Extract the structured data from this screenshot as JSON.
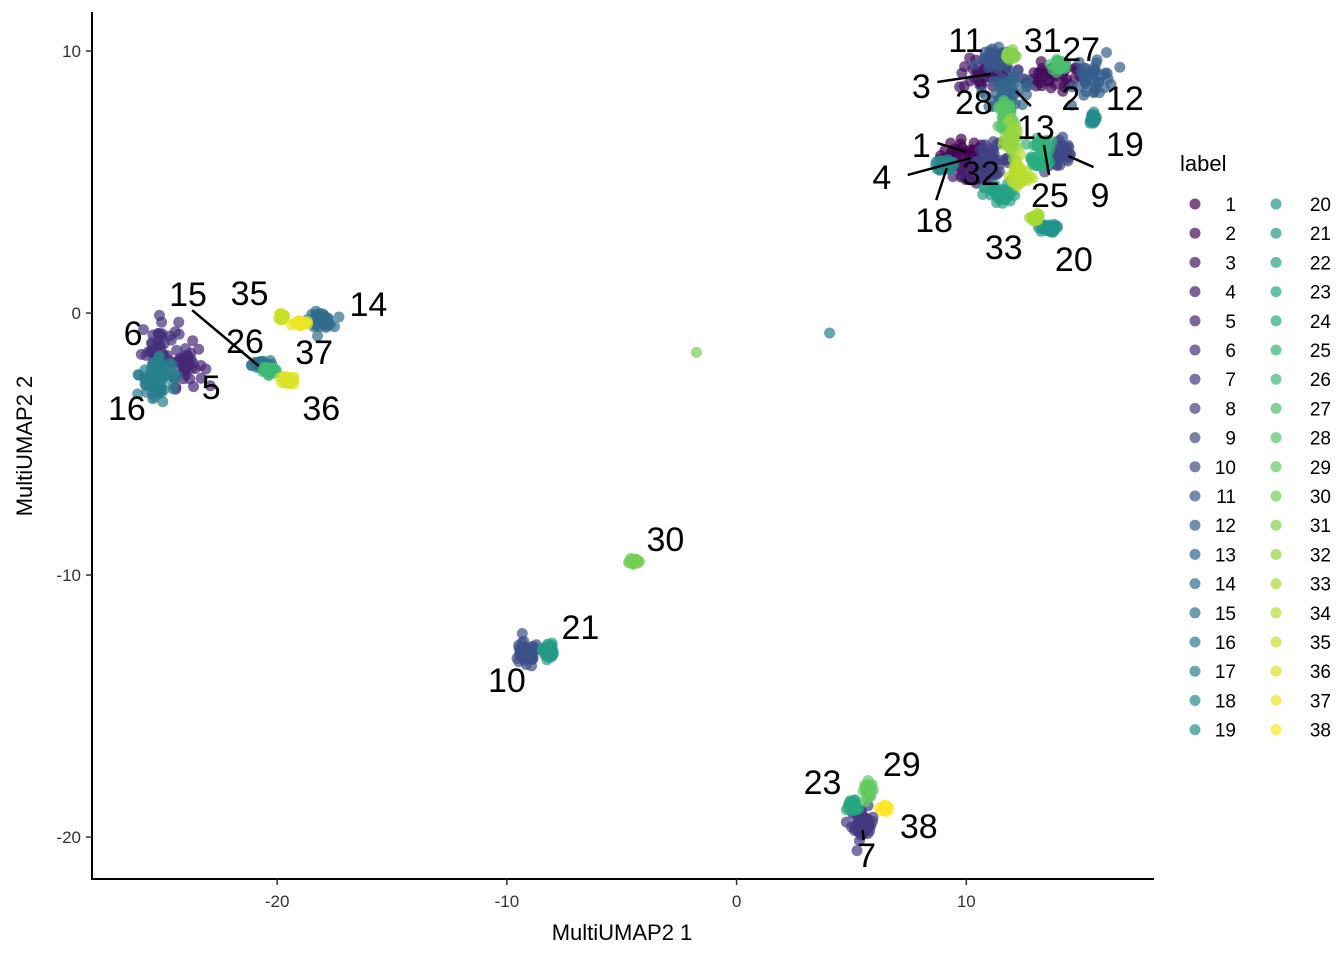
{
  "chart_data": {
    "type": "scatter",
    "xlabel": "MultiUMAP2 1",
    "ylabel": "MultiUMAP2 2",
    "xlim": [
      -28.06,
      18.17
    ],
    "ylim": [
      -21.6,
      11.49
    ],
    "xticks": [
      -20,
      -10,
      0,
      10
    ],
    "yticks": [
      -20,
      -10,
      0,
      10
    ],
    "grid": false,
    "legend": {
      "title": "label",
      "placement": "right",
      "columns": 2
    },
    "colorscale": [
      "#440154",
      "#472d7b",
      "#3b528b",
      "#2c728e",
      "#21918c",
      "#28ae80",
      "#5ec962",
      "#addc30",
      "#fde725"
    ],
    "point_opacity": 0.7,
    "clusters": [
      {
        "label": "1",
        "center": [
          9.98,
          6.03
        ],
        "sd": [
          0.55,
          0.3
        ]
      },
      {
        "label": "2",
        "center": [
          13.7,
          8.97
        ],
        "sd": [
          0.7,
          0.25
        ]
      },
      {
        "label": "3",
        "center": [
          10.85,
          9.08
        ],
        "sd": [
          0.6,
          0.3
        ]
      },
      {
        "label": "4",
        "center": [
          10.4,
          5.46
        ],
        "sd": [
          0.45,
          0.3
        ]
      },
      {
        "label": "5",
        "center": [
          -24.0,
          -1.98
        ],
        "sd": [
          0.4,
          0.4
        ]
      },
      {
        "label": "6",
        "center": [
          -25.1,
          -1.22
        ],
        "sd": [
          0.4,
          0.5
        ]
      },
      {
        "label": "7",
        "center": [
          5.5,
          -19.5
        ],
        "sd": [
          0.25,
          0.3
        ]
      },
      {
        "label": "8",
        "center": [
          11.07,
          5.84
        ],
        "sd": [
          0.4,
          0.3
        ]
      },
      {
        "label": "9",
        "center": [
          14.1,
          6.03
        ],
        "sd": [
          0.35,
          0.35
        ]
      },
      {
        "label": "10",
        "center": [
          -9.2,
          -13.05
        ],
        "sd": [
          0.3,
          0.25
        ]
      },
      {
        "label": "11",
        "center": [
          11.3,
          9.66
        ],
        "sd": [
          0.35,
          0.2
        ]
      },
      {
        "label": "12",
        "center": [
          15.6,
          9.08
        ],
        "sd": [
          0.45,
          0.45
        ]
      },
      {
        "label": "13",
        "center": [
          11.9,
          8.5
        ],
        "sd": [
          0.55,
          0.3
        ]
      },
      {
        "label": "14",
        "center": [
          -18.1,
          -0.27
        ],
        "sd": [
          0.25,
          0.15
        ]
      },
      {
        "label": "15",
        "center": [
          -20.7,
          -1.98
        ],
        "sd": [
          0.2,
          0.08
        ]
      },
      {
        "label": "16",
        "center": [
          -25.3,
          -2.75
        ],
        "sd": [
          0.45,
          0.35
        ]
      },
      {
        "label": "17",
        "center": [
          -25.1,
          -2.2
        ],
        "sd": [
          0.35,
          0.3
        ]
      },
      {
        "label": "18",
        "center": [
          9.1,
          5.65
        ],
        "sd": [
          0.15,
          0.12
        ]
      },
      {
        "label": "19",
        "center": [
          15.5,
          7.44
        ],
        "sd": [
          0.08,
          0.1
        ]
      },
      {
        "label": "20",
        "center": [
          13.5,
          3.24
        ],
        "sd": [
          0.2,
          0.08
        ]
      },
      {
        "label": "21",
        "center": [
          -8.2,
          -12.9
        ],
        "sd": [
          0.12,
          0.15
        ]
      },
      {
        "label": "22",
        "center": [
          11.5,
          4.5
        ],
        "sd": [
          0.35,
          0.2
        ]
      },
      {
        "label": "23",
        "center": [
          5.05,
          -18.8
        ],
        "sd": [
          0.12,
          0.12
        ]
      },
      {
        "label": "24",
        "center": [
          13.2,
          5.84
        ],
        "sd": [
          0.2,
          0.1
        ]
      },
      {
        "label": "25",
        "center": [
          13.2,
          6.4
        ],
        "sd": [
          0.2,
          0.12
        ]
      },
      {
        "label": "26",
        "center": [
          -20.3,
          -2.2
        ],
        "sd": [
          0.15,
          0.06
        ]
      },
      {
        "label": "27",
        "center": [
          14.1,
          9.47
        ],
        "sd": [
          0.12,
          0.1
        ]
      },
      {
        "label": "28",
        "center": [
          11.7,
          7.56
        ],
        "sd": [
          0.15,
          0.25
        ]
      },
      {
        "label": "29",
        "center": [
          5.75,
          -18.2
        ],
        "sd": [
          0.1,
          0.15
        ]
      },
      {
        "label": "30",
        "center": [
          -4.5,
          -9.47
        ],
        "sd": [
          0.1,
          0.05
        ]
      },
      {
        "label": "31",
        "center": [
          11.9,
          9.85
        ],
        "sd": [
          0.1,
          0.08
        ]
      },
      {
        "label": "32",
        "center": [
          12.0,
          6.6
        ],
        "sd": [
          0.15,
          0.3
        ]
      },
      {
        "label": "33",
        "center": [
          13.0,
          3.63
        ],
        "sd": [
          0.1,
          0.06
        ]
      },
      {
        "label": "34",
        "center": [
          12.3,
          5.27
        ],
        "sd": [
          0.2,
          0.3
        ]
      },
      {
        "label": "35",
        "center": [
          -19.8,
          -0.15
        ],
        "sd": [
          0.06,
          0.05
        ]
      },
      {
        "label": "36",
        "center": [
          -19.5,
          -2.56
        ],
        "sd": [
          0.12,
          0.08
        ]
      },
      {
        "label": "37",
        "center": [
          -19.0,
          -0.38
        ],
        "sd": [
          0.15,
          0.05
        ]
      },
      {
        "label": "38",
        "center": [
          6.4,
          -18.9
        ],
        "sd": [
          0.08,
          0.06
        ]
      }
    ],
    "extra_points": [
      {
        "label": "17",
        "x": 4.05,
        "y": -0.76
      },
      {
        "label": "30",
        "x": -1.75,
        "y": -1.5
      }
    ],
    "annotations": [
      {
        "text": "11",
        "x": 9.98,
        "y": 10.42
      },
      {
        "text": "31",
        "x": 13.33,
        "y": 10.42
      },
      {
        "text": "27",
        "x": 15.0,
        "y": 10.08
      },
      {
        "text": "3",
        "x": 8.04,
        "y": 8.66
      },
      {
        "text": "28",
        "x": 10.33,
        "y": 8.05
      },
      {
        "text": "2",
        "x": 14.55,
        "y": 8.21
      },
      {
        "text": "12",
        "x": 16.9,
        "y": 8.21
      },
      {
        "text": "13",
        "x": 13.03,
        "y": 7.1
      },
      {
        "text": "1",
        "x": 8.04,
        "y": 6.41
      },
      {
        "text": "19",
        "x": 16.9,
        "y": 6.45
      },
      {
        "text": "4",
        "x": 6.32,
        "y": 5.19
      },
      {
        "text": "32",
        "x": 10.63,
        "y": 5.34
      },
      {
        "text": "9",
        "x": 15.82,
        "y": 4.5
      },
      {
        "text": "25",
        "x": 13.64,
        "y": 4.5
      },
      {
        "text": "18",
        "x": 8.6,
        "y": 3.55
      },
      {
        "text": "33",
        "x": 11.63,
        "y": 2.52
      },
      {
        "text": "20",
        "x": 14.68,
        "y": 2.06
      },
      {
        "text": "15",
        "x": -23.88,
        "y": 0.72
      },
      {
        "text": "35",
        "x": -21.2,
        "y": 0.76
      },
      {
        "text": "14",
        "x": -16.03,
        "y": 0.34
      },
      {
        "text": "6",
        "x": -26.27,
        "y": -0.76
      },
      {
        "text": "26",
        "x": -21.4,
        "y": -1.07
      },
      {
        "text": "37",
        "x": -18.39,
        "y": -1.49
      },
      {
        "text": "5",
        "x": -22.87,
        "y": -2.82
      },
      {
        "text": "16",
        "x": -26.54,
        "y": -3.63
      },
      {
        "text": "36",
        "x": -18.08,
        "y": -3.63
      },
      {
        "text": "30",
        "x": -3.1,
        "y": -8.63
      },
      {
        "text": "21",
        "x": -6.8,
        "y": -11.99
      },
      {
        "text": "10",
        "x": -10.0,
        "y": -14.0
      },
      {
        "text": "29",
        "x": 7.19,
        "y": -17.21
      },
      {
        "text": "23",
        "x": 3.74,
        "y": -17.9
      },
      {
        "text": "38",
        "x": 7.93,
        "y": -19.58
      },
      {
        "text": "7",
        "x": 5.66,
        "y": -20.69
      }
    ],
    "leader_lines": [
      {
        "label": "3",
        "from": [
          8.74,
          8.82
        ],
        "to": [
          11.05,
          9.12
        ]
      },
      {
        "label": "1",
        "from": [
          8.74,
          6.49
        ],
        "to": [
          9.98,
          6.15
        ]
      },
      {
        "label": "4",
        "from": [
          7.45,
          5.27
        ],
        "to": [
          10.2,
          5.92
        ]
      },
      {
        "label": "18",
        "from": [
          8.69,
          4.31
        ],
        "to": [
          9.15,
          5.53
        ]
      },
      {
        "label": "13",
        "from": [
          12.81,
          7.9
        ],
        "to": [
          12.16,
          8.47
        ]
      },
      {
        "label": "25",
        "from": [
          13.6,
          5.27
        ],
        "to": [
          13.38,
          6.41
        ]
      },
      {
        "label": "9",
        "from": [
          15.54,
          5.57
        ],
        "to": [
          14.45,
          5.99
        ]
      },
      {
        "label": "15",
        "from": [
          -23.7,
          0.11
        ],
        "to": [
          -20.8,
          -2.02
        ]
      },
      {
        "label": "7",
        "from": [
          5.53,
          -20.11
        ],
        "to": [
          5.49,
          -19.73
        ]
      }
    ]
  }
}
